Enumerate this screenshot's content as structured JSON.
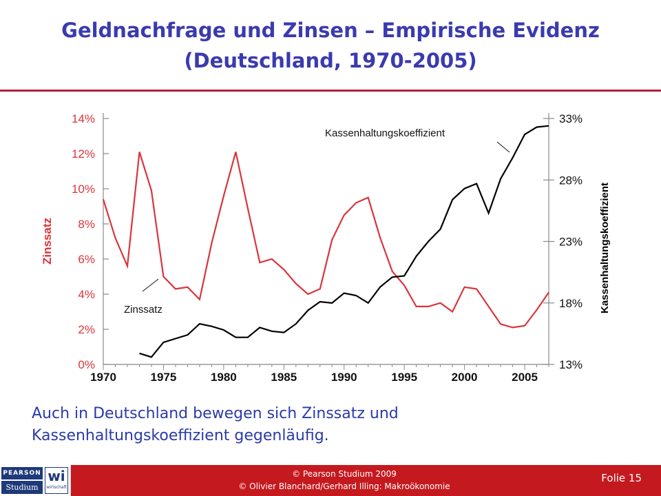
{
  "slide": {
    "title_line1": "Geldnachfrage und Zinsen – Empirische Evidenz",
    "title_line2": "(Deutschland, 1970-2005)",
    "caption_line1": "Auch in Deutschland  bewegen sich Zinssatz und",
    "caption_line2": "Kassenhaltungskoeffizient gegenläufig."
  },
  "footer": {
    "logo_pearson": "PEARSON",
    "logo_studium": "Studium",
    "logo_wi": "wi",
    "logo_wirtschaft": "wirtschaft",
    "copyright_line1": "© Pearson Studium 2009",
    "copyright_line2": "© Olivier Blanchard/Gerhard Illing: Makroökonomie",
    "slide_number": "Folie 15"
  },
  "colors": {
    "title": "#3a3ab0",
    "zinssatz": "#d9343a",
    "kassenhaltung": "#000000",
    "rule": "#b0203a",
    "footer": "#c41a1f",
    "caption": "#2a3aa8"
  },
  "chart_data": {
    "type": "line",
    "x_ticks": [
      "1970",
      "1975",
      "1980",
      "1985",
      "1990",
      "1995",
      "2000",
      "2005"
    ],
    "xlim": [
      1970,
      2007
    ],
    "y_left": {
      "label": "Zinssatz",
      "ylim": [
        0,
        14
      ],
      "ticks": [
        {
          "v": 0,
          "label": "0%"
        },
        {
          "v": 2,
          "label": "2%"
        },
        {
          "v": 4,
          "label": "4%"
        },
        {
          "v": 6,
          "label": "6%"
        },
        {
          "v": 8,
          "label": "8%"
        },
        {
          "v": 10,
          "label": "10%"
        },
        {
          "v": 12,
          "label": "12%"
        },
        {
          "v": 14,
          "label": "14%"
        }
      ]
    },
    "y_right": {
      "label": "Kassenhaltungskoeffizient",
      "ylim": [
        13,
        33
      ],
      "ticks": [
        {
          "v": 13,
          "label": "13%"
        },
        {
          "v": 18,
          "label": "18%"
        },
        {
          "v": 23,
          "label": "23%"
        },
        {
          "v": 28,
          "label": "28%"
        },
        {
          "v": 33,
          "label": "33%"
        }
      ]
    },
    "series": [
      {
        "name": "Zinssatz",
        "axis": "left",
        "x": [
          1970,
          1971,
          1972,
          1973,
          1974,
          1975,
          1976,
          1977,
          1978,
          1979,
          1980,
          1981,
          1982,
          1983,
          1984,
          1985,
          1986,
          1987,
          1988,
          1989,
          1990,
          1991,
          1992,
          1993,
          1994,
          1995,
          1996,
          1997,
          1998,
          1999,
          2000,
          2001,
          2002,
          2003,
          2004,
          2005,
          2006,
          2007
        ],
        "y": [
          9.4,
          7.2,
          5.6,
          12.1,
          9.9,
          5.0,
          4.3,
          4.4,
          3.7,
          6.9,
          9.6,
          12.1,
          8.9,
          5.8,
          6.0,
          5.4,
          4.6,
          4.0,
          4.3,
          7.1,
          8.5,
          9.2,
          9.5,
          7.2,
          5.3,
          4.5,
          3.3,
          3.3,
          3.5,
          3.0,
          4.4,
          4.3,
          3.3,
          2.3,
          2.1,
          2.2,
          3.1,
          4.1
        ]
      },
      {
        "name": "Kassenhaltungskoeffizient",
        "axis": "right",
        "x": [
          1973,
          1974,
          1975,
          1976,
          1977,
          1978,
          1979,
          1980,
          1981,
          1982,
          1983,
          1984,
          1985,
          1986,
          1987,
          1988,
          1989,
          1990,
          1991,
          1992,
          1993,
          1994,
          1995,
          1996,
          1997,
          1998,
          1999,
          2000,
          2001,
          2002,
          2003,
          2004,
          2005,
          2006,
          2007
        ],
        "y": [
          13.9,
          13.6,
          14.8,
          15.1,
          15.4,
          16.3,
          16.1,
          15.8,
          15.2,
          15.2,
          16.0,
          15.7,
          15.6,
          16.3,
          17.4,
          18.1,
          18.0,
          18.8,
          18.6,
          18.0,
          19.3,
          20.1,
          20.2,
          21.8,
          23.0,
          24.0,
          26.4,
          27.3,
          27.7,
          25.3,
          28.1,
          29.8,
          31.7,
          32.3,
          32.4
        ]
      }
    ],
    "annotations": [
      {
        "text": "Kassenhaltungskoeffizient",
        "series": "Kassenhaltungskoeffizient"
      },
      {
        "text": "Zinssatz",
        "series": "Zinssatz"
      }
    ],
    "grid": false
  }
}
